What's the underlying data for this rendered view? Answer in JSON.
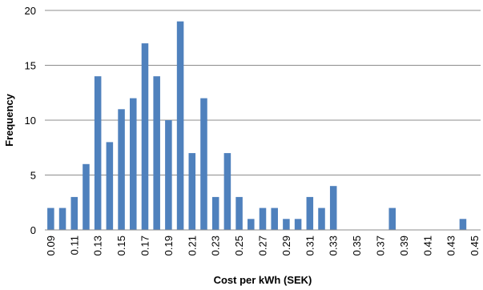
{
  "chart_data": {
    "type": "bar",
    "title": "",
    "xlabel": "Cost per kWh (SEK)",
    "ylabel": "Frequency",
    "ylim": [
      0,
      20
    ],
    "y_ticks": [
      "0",
      "5",
      "10",
      "15",
      "20"
    ],
    "grid": "horizontal",
    "legend": "none",
    "bar_color": "#4f81bd",
    "categories": [
      "0.09",
      "0.10",
      "0.11",
      "0.12",
      "0.13",
      "0.14",
      "0.15",
      "0.16",
      "0.17",
      "0.18",
      "0.19",
      "0.20",
      "0.21",
      "0.22",
      "0.23",
      "0.24",
      "0.25",
      "0.26",
      "0.27",
      "0.28",
      "0.29",
      "0.30",
      "0.31",
      "0.32",
      "0.33",
      "0.34",
      "0.35",
      "0.36",
      "0.37",
      "0.38",
      "0.39",
      "0.40",
      "0.41",
      "0.42",
      "0.43",
      "0.44",
      "0.45"
    ],
    "x_tick_labels": [
      "0.09",
      "",
      "0.11",
      "",
      "0.13",
      "",
      "0.15",
      "",
      "0.17",
      "",
      "0.19",
      "",
      "0.21",
      "",
      "0.23",
      "",
      "0.25",
      "",
      "0.27",
      "",
      "0.29",
      "",
      "0.31",
      "",
      "0.33",
      "",
      "0.35",
      "",
      "0.37",
      "",
      "0.39",
      "",
      "0.41",
      "",
      "0.43",
      "",
      "0.45"
    ],
    "values": [
      2,
      2,
      3,
      6,
      14,
      8,
      11,
      12,
      17,
      14,
      10,
      19,
      7,
      12,
      3,
      7,
      3,
      1,
      2,
      2,
      1,
      1,
      3,
      2,
      4,
      0,
      0,
      0,
      0,
      2,
      0,
      0,
      0,
      0,
      0,
      1,
      0
    ]
  }
}
